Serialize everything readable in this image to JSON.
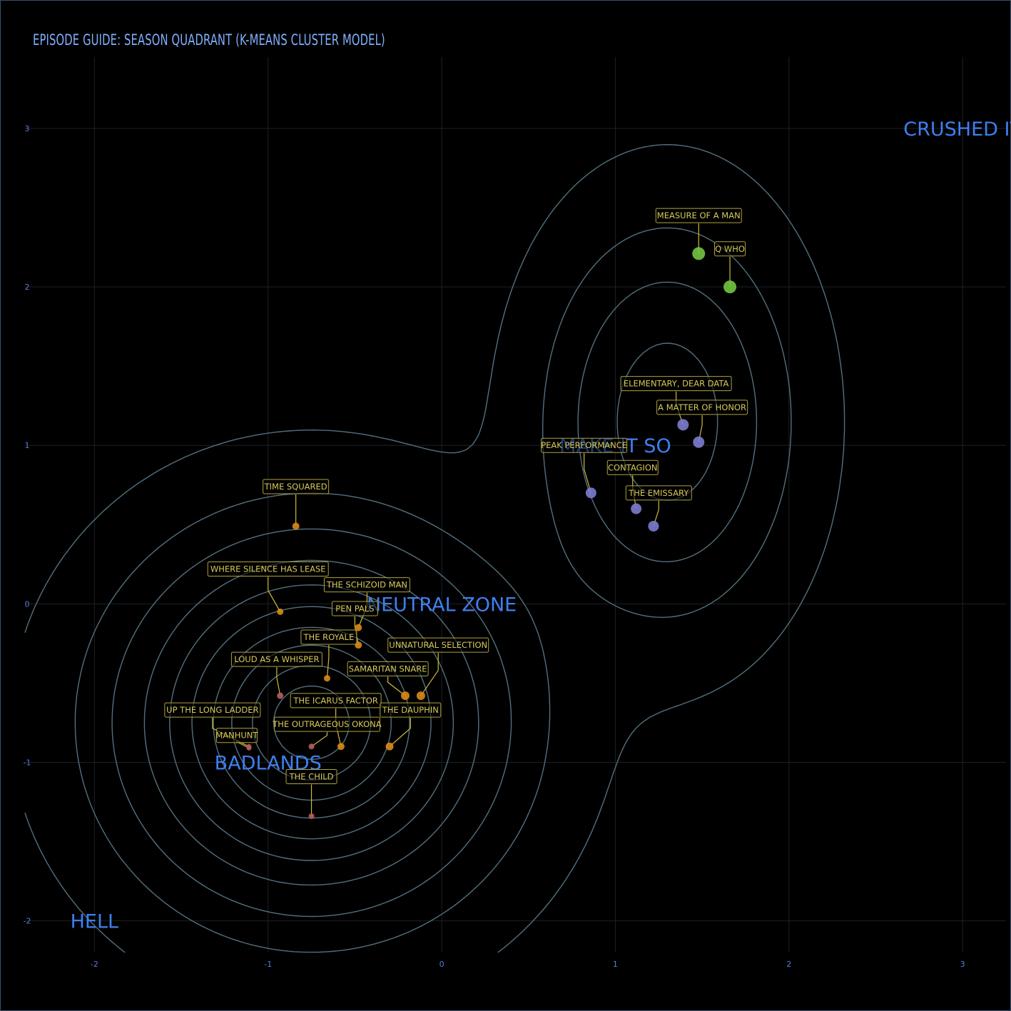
{
  "title": "EPISODE GUIDE: SEASON QUADRANT (K-MEANS CLUSTER MODEL)",
  "chart_data": {
    "type": "scatter",
    "title": "EPISODE GUIDE: SEASON QUADRANT (K-MEANS CLUSTER MODEL)",
    "xlim": [
      -2.4,
      3.25
    ],
    "ylim": [
      -2.2,
      3.45
    ],
    "x_ticks": [
      -2,
      -1,
      0,
      1,
      2,
      3
    ],
    "y_ticks": [
      -2,
      -1,
      0,
      1,
      2,
      3
    ],
    "x_tick_labels": [
      "-2",
      "-1",
      "0",
      "1",
      "2",
      "3"
    ],
    "y_tick_labels": [
      "-2",
      "-1",
      "0",
      "1",
      "2",
      "3"
    ],
    "grid": true,
    "zones": [
      {
        "label": "CRUSHED IT",
        "x": 3.0,
        "y": 3.0
      },
      {
        "label": "MAKE IT SO",
        "x": 1.0,
        "y": 1.0
      },
      {
        "label": "NEUTRAL ZONE",
        "x": 0.0,
        "y": 0.0
      },
      {
        "label": "BADLANDS",
        "x": -1.0,
        "y": -1.0
      },
      {
        "label": "HELL",
        "x": -2.0,
        "y": -2.0
      }
    ],
    "cluster_colors": {
      "top": "#73c543",
      "good": "#7c7ccf",
      "mid": "#d98a1a",
      "low": "#b85c5c"
    },
    "points": [
      {
        "label": "MEASURE OF A MAN",
        "x": 1.48,
        "y": 2.21,
        "cluster": "top",
        "size": 9,
        "lx": 1.48,
        "ly": 2.45
      },
      {
        "label": "Q WHO",
        "x": 1.66,
        "y": 2.0,
        "cluster": "top",
        "size": 9,
        "lx": 1.66,
        "ly": 2.24
      },
      {
        "label": "ELEMENTARY, DEAR DATA",
        "x": 1.39,
        "y": 1.13,
        "cluster": "good",
        "size": 8,
        "lx": 1.35,
        "ly": 1.39
      },
      {
        "label": "A MATTER OF HONOR",
        "x": 1.48,
        "y": 1.02,
        "cluster": "good",
        "size": 8,
        "lx": 1.5,
        "ly": 1.24
      },
      {
        "label": "PEAK PERFORMANCE",
        "x": 0.86,
        "y": 0.7,
        "cluster": "good",
        "size": 7.5,
        "lx": 0.82,
        "ly": 1.0
      },
      {
        "label": "CONTAGION",
        "x": 1.12,
        "y": 0.6,
        "cluster": "good",
        "size": 7.5,
        "lx": 1.1,
        "ly": 0.86
      },
      {
        "label": "THE EMISSARY",
        "x": 1.22,
        "y": 0.49,
        "cluster": "good",
        "size": 7.5,
        "lx": 1.25,
        "ly": 0.7
      },
      {
        "label": "TIME SQUARED",
        "x": -0.84,
        "y": 0.49,
        "cluster": "mid",
        "size": 5,
        "lx": -0.84,
        "ly": 0.74
      },
      {
        "label": "WHERE SILENCE HAS LEASE",
        "x": -0.93,
        "y": -0.05,
        "cluster": "mid",
        "size": 4.5,
        "lx": -1.0,
        "ly": 0.22
      },
      {
        "label": "THE SCHIZOID MAN",
        "x": -0.48,
        "y": -0.15,
        "cluster": "mid",
        "size": 5,
        "lx": -0.43,
        "ly": 0.12
      },
      {
        "label": "PEN PALS",
        "x": -0.48,
        "y": -0.26,
        "cluster": "mid",
        "size": 5,
        "lx": -0.5,
        "ly": -0.03
      },
      {
        "label": "THE ROYALE",
        "x": -0.66,
        "y": -0.47,
        "cluster": "mid",
        "size": 4.5,
        "lx": -0.65,
        "ly": -0.21
      },
      {
        "label": "LOUD AS A WHISPER",
        "x": -0.93,
        "y": -0.58,
        "cluster": "low",
        "size": 4.5,
        "lx": -0.95,
        "ly": -0.35
      },
      {
        "label": "UNNATURAL SELECTION",
        "x": -0.12,
        "y": -0.58,
        "cluster": "mid",
        "size": 6,
        "lx": -0.02,
        "ly": -0.26
      },
      {
        "label": "SAMARITAN SNARE",
        "x": -0.21,
        "y": -0.58,
        "cluster": "mid",
        "size": 6,
        "lx": -0.31,
        "ly": -0.41
      },
      {
        "label": "THE ICARUS FACTOR",
        "x": -0.58,
        "y": -0.9,
        "cluster": "mid",
        "size": 5,
        "lx": -0.61,
        "ly": -0.61
      },
      {
        "label": "THE DAUPHIN",
        "x": -0.3,
        "y": -0.9,
        "cluster": "mid",
        "size": 5.5,
        "lx": -0.18,
        "ly": -0.67
      },
      {
        "label": "THE OUTRAGEOUS OKONA",
        "x": -0.75,
        "y": -0.9,
        "cluster": "low",
        "size": 4,
        "lx": -0.66,
        "ly": -0.76
      },
      {
        "label": "UP THE LONG LADDER",
        "x": -1.11,
        "y": -0.9,
        "cluster": "low",
        "size": 3.5,
        "lx": -1.32,
        "ly": -0.67
      },
      {
        "label": "MANHUNT",
        "x": -1.11,
        "y": -0.91,
        "cluster": "low",
        "size": 3.5,
        "lx": -1.18,
        "ly": -0.83
      },
      {
        "label": "THE CHILD",
        "x": -0.75,
        "y": -1.34,
        "cluster": "low",
        "size": 4,
        "lx": -0.75,
        "ly": -1.09
      }
    ]
  }
}
